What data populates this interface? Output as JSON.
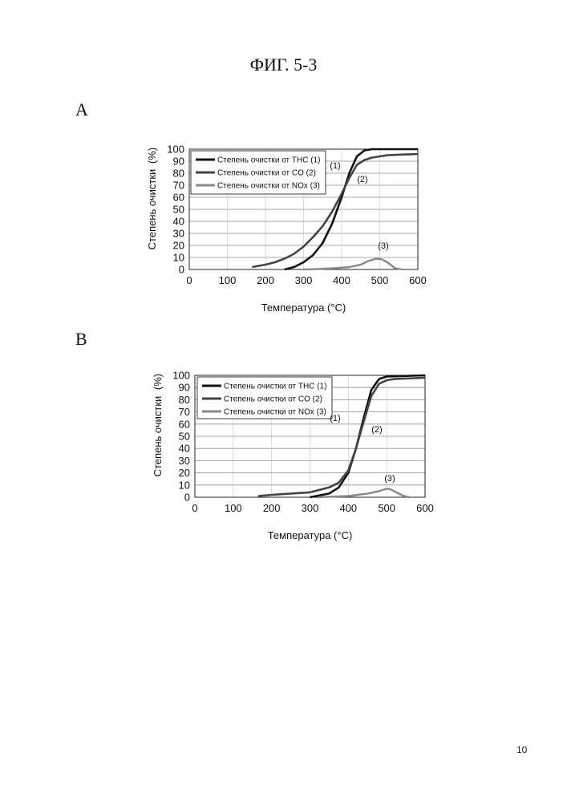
{
  "page": {
    "title": "ФИГ. 5-3",
    "page_number": "10"
  },
  "chart_data": [
    {
      "panel_label": "A",
      "type": "line",
      "xlabel": "Температура (°C)",
      "ylabel": "Степень очистки",
      "ylabel_unit": "(%)",
      "xlim": [
        0,
        600
      ],
      "ylim": [
        0,
        100
      ],
      "xticks": [
        0,
        100,
        200,
        300,
        400,
        500,
        600
      ],
      "yticks": [
        0,
        10,
        20,
        30,
        40,
        50,
        60,
        70,
        80,
        90,
        100
      ],
      "grid": "horizontal",
      "legend_position": "top-left",
      "series": [
        {
          "name": "Степень очистки от THC (1)",
          "tag": "(1)",
          "color": "#111111",
          "x": [
            250,
            275,
            300,
            325,
            350,
            375,
            400,
            420,
            440,
            460,
            480,
            500,
            520,
            600
          ],
          "y": [
            0,
            2,
            6,
            12,
            22,
            38,
            60,
            80,
            94,
            99,
            100,
            100,
            100,
            100
          ]
        },
        {
          "name": "Степень очистки от CO (2)",
          "tag": "(2)",
          "color": "#444444",
          "x": [
            165,
            200,
            225,
            250,
            275,
            300,
            325,
            350,
            375,
            400,
            420,
            440,
            460,
            480,
            500,
            520,
            600
          ],
          "y": [
            2,
            4,
            6,
            9,
            13,
            19,
            27,
            36,
            48,
            63,
            76,
            87,
            91,
            93,
            94,
            95,
            96
          ]
        },
        {
          "name": "Степень очистки от NOx (3)",
          "tag": "(3)",
          "color": "#888888",
          "x": [
            300,
            340,
            380,
            420,
            450,
            470,
            490,
            505,
            520,
            540,
            560
          ],
          "y": [
            0,
            0.5,
            1,
            2,
            4,
            7,
            9,
            8.5,
            6,
            1,
            0
          ]
        }
      ]
    },
    {
      "panel_label": "B",
      "type": "line",
      "xlabel": "Температура (°C)",
      "ylabel": "Степень очистки",
      "ylabel_unit": "(%)",
      "xlim": [
        0,
        600
      ],
      "ylim": [
        0,
        100
      ],
      "xticks": [
        0,
        100,
        200,
        300,
        400,
        500,
        600
      ],
      "yticks": [
        0,
        10,
        20,
        30,
        40,
        50,
        60,
        70,
        80,
        90,
        100
      ],
      "grid": "horizontal",
      "legend_position": "top-left",
      "series": [
        {
          "name": "Степень очистки от THC (1)",
          "tag": "(1)",
          "color": "#111111",
          "x": [
            300,
            350,
            375,
            400,
            420,
            440,
            460,
            480,
            500,
            600
          ],
          "y": [
            0,
            3,
            8,
            20,
            40,
            65,
            88,
            97,
            99,
            100
          ]
        },
        {
          "name": "Степень очистки от CO (2)",
          "tag": "(2)",
          "color": "#444444",
          "x": [
            165,
            200,
            250,
            300,
            350,
            375,
            400,
            420,
            440,
            460,
            480,
            500,
            520,
            600
          ],
          "y": [
            1,
            2,
            3,
            4,
            8,
            12,
            22,
            40,
            62,
            83,
            93,
            96,
            97,
            98
          ]
        },
        {
          "name": "Степень очистки от NOx (3)",
          "tag": "(3)",
          "color": "#888888",
          "x": [
            320,
            400,
            450,
            480,
            500,
            510,
            525,
            545,
            560
          ],
          "y": [
            0,
            1,
            3,
            5,
            7,
            6.5,
            4,
            1,
            0
          ]
        }
      ]
    }
  ]
}
